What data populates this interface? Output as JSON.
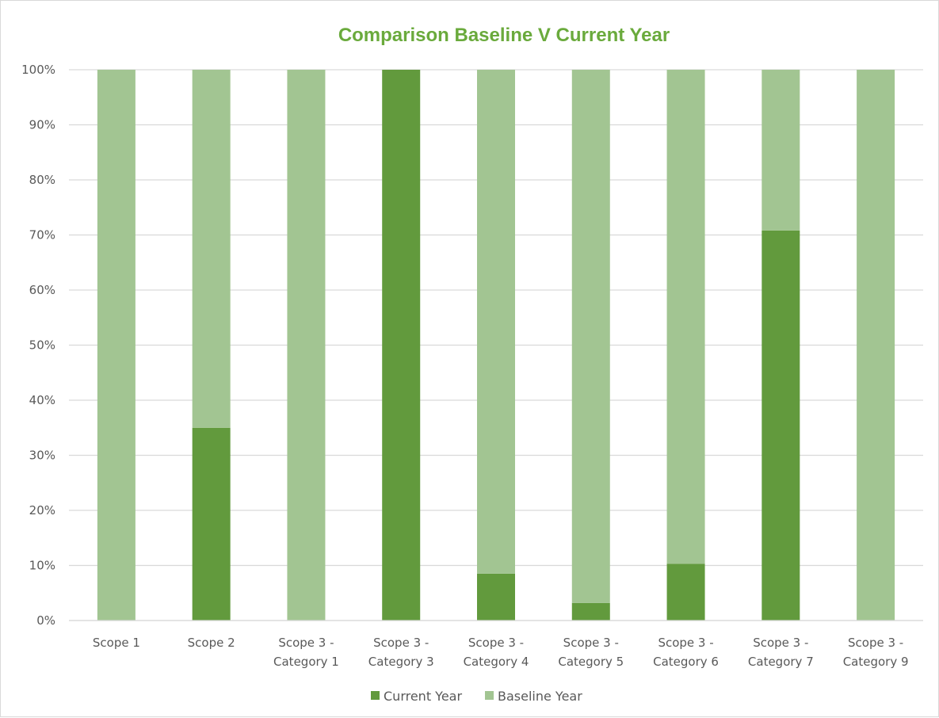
{
  "chart_data": {
    "type": "bar",
    "stacked": true,
    "percent_stacked": true,
    "title": "Comparison Baseline V Current Year",
    "xlabel": "",
    "ylabel": "",
    "ylim": [
      0,
      100
    ],
    "y_ticks": [
      "0%",
      "10%",
      "20%",
      "30%",
      "40%",
      "50%",
      "60%",
      "70%",
      "80%",
      "90%",
      "100%"
    ],
    "grid": true,
    "legend_position": "bottom",
    "categories": [
      [
        "Scope 1"
      ],
      [
        "Scope 2"
      ],
      [
        "Scope 3 -",
        "Category 1"
      ],
      [
        "Scope 3 -",
        "Category 3"
      ],
      [
        "Scope 3 -",
        "Category 4"
      ],
      [
        "Scope 3 -",
        "Category 5"
      ],
      [
        "Scope 3 -",
        "Category 6"
      ],
      [
        "Scope 3 -",
        "Category 7"
      ],
      [
        "Scope 3 -",
        "Category 9"
      ]
    ],
    "series": [
      {
        "name": "Current Year",
        "color": "#629a3d",
        "values": [
          0,
          35,
          0,
          100,
          8.5,
          3.2,
          10.3,
          70.8,
          0
        ]
      },
      {
        "name": "Baseline Year",
        "color": "#a2c592",
        "values": [
          100,
          65,
          100,
          0,
          91.5,
          96.8,
          89.7,
          29.2,
          100
        ]
      }
    ],
    "title_color": "#6aaa3c",
    "grid_color": "#d9d9d9"
  }
}
